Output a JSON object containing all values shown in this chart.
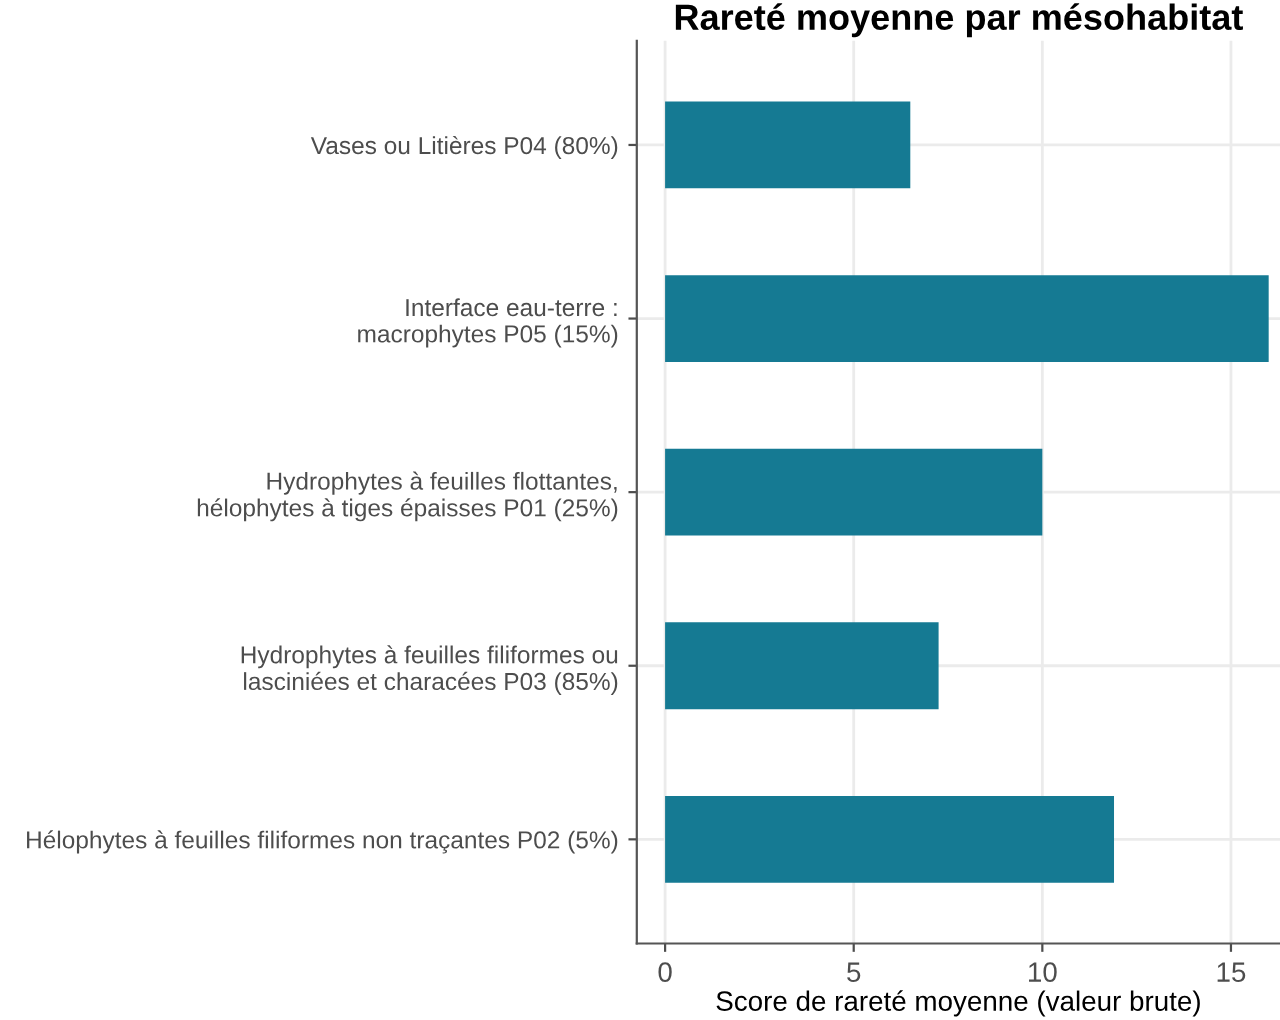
{
  "chart_data": {
    "type": "bar",
    "orientation": "horizontal",
    "title": "Rareté moyenne par mésohabitat",
    "categories": [
      "Vases ou Litières P04 (80%)",
      "Interface eau-terre :\nmacrophytes P05 (15%)",
      "Hydrophytes à feuilles flottantes,\nhélophytes à tiges épaisses P01 (25%)",
      "Hydrophytes à feuilles filiformes ou\nlasciniées et characées P03 (85%)",
      "Hélophytes à feuilles filiformes non traçantes P02 (5%)"
    ],
    "values": [
      6.5,
      16.0,
      10.0,
      7.25,
      11.9
    ],
    "color": "#157a93",
    "xlabel": "Score de rareté moyenne (valeur brute)",
    "xlim": [
      -0.75,
      16.3
    ],
    "xticks": [
      0,
      5,
      10,
      15
    ],
    "grid": true
  }
}
